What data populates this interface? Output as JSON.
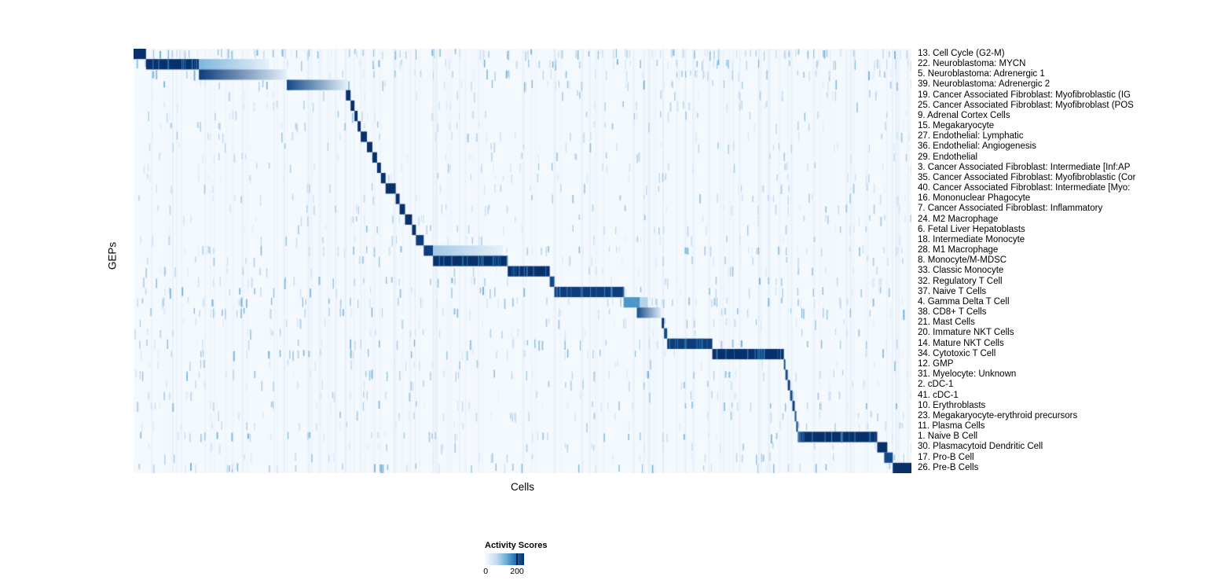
{
  "figure": {
    "x_axis_label": "Cells",
    "y_axis_label": "GEPs"
  },
  "legend": {
    "title": "Activity Scores",
    "min_label": "0",
    "max_label": "200"
  },
  "chart_data": {
    "type": "heatmap",
    "title": "",
    "xlabel": "Cells",
    "ylabel": "GEPs",
    "x_axis": "individual cells (columns, unlabeled, ordered by cluster)",
    "colorbar": {
      "title": "Activity Scores",
      "range": [
        0,
        200
      ]
    },
    "colormap": [
      "#f7fbff",
      "#c6dbef",
      "#6baed6",
      "#2171b5",
      "#08306b"
    ],
    "noise": {
      "seed": 42,
      "base_density": 0.03,
      "column_streaks": 120
    },
    "rows": [
      {
        "label": "13. Cell Cycle (G2-M)",
        "noise_boost": 4,
        "blocks": [
          {
            "start_frac": 0.0,
            "width_frac": 0.016,
            "intensity": 1.0
          }
        ]
      },
      {
        "label": "22. Neuroblastoma: MYCN",
        "noise_boost": 2,
        "blocks": [
          {
            "start_frac": 0.016,
            "width_frac": 0.068,
            "intensity": 1.0
          },
          {
            "start_frac": 0.084,
            "width_frac": 0.09,
            "intensity": 0.45,
            "fade": true
          }
        ]
      },
      {
        "label": "5. Neuroblastoma: Adrenergic 1",
        "noise_boost": 2,
        "blocks": [
          {
            "start_frac": 0.084,
            "width_frac": 0.113,
            "intensity": 0.95,
            "fade": true
          }
        ]
      },
      {
        "label": "39. Neuroblastoma: Adrenergic 2",
        "noise_boost": 1.5,
        "blocks": [
          {
            "start_frac": 0.197,
            "width_frac": 0.078,
            "intensity": 0.9,
            "fade": true
          }
        ]
      },
      {
        "label": "19. Cancer Associated Fibroblast: Myofibroblastic (IG",
        "blocks": [
          {
            "start_frac": 0.273,
            "width_frac": 0.006,
            "intensity": 1.0
          }
        ]
      },
      {
        "label": "25. Cancer Associated Fibroblast: Myofibroblast (POS",
        "blocks": [
          {
            "start_frac": 0.279,
            "width_frac": 0.005,
            "intensity": 1.0
          }
        ]
      },
      {
        "label": "9. Adrenal Cortex Cells",
        "blocks": [
          {
            "start_frac": 0.284,
            "width_frac": 0.004,
            "intensity": 1.0
          }
        ]
      },
      {
        "label": "15. Megakaryocyte",
        "blocks": [
          {
            "start_frac": 0.288,
            "width_frac": 0.004,
            "intensity": 1.0
          }
        ]
      },
      {
        "label": "27. Endothelial: Lymphatic",
        "blocks": [
          {
            "start_frac": 0.292,
            "width_frac": 0.008,
            "intensity": 1.0
          }
        ]
      },
      {
        "label": "36. Endothelial: Angiogenesis",
        "blocks": [
          {
            "start_frac": 0.3,
            "width_frac": 0.007,
            "intensity": 1.0
          }
        ]
      },
      {
        "label": "29. Endothelial",
        "blocks": [
          {
            "start_frac": 0.307,
            "width_frac": 0.006,
            "intensity": 1.0
          }
        ]
      },
      {
        "label": "3. Cancer Associated Fibroblast: Intermediate [Inf:AP",
        "blocks": [
          {
            "start_frac": 0.313,
            "width_frac": 0.005,
            "intensity": 1.0
          }
        ]
      },
      {
        "label": "35. Cancer Associated Fibroblast: Myofibroblastic (Cor",
        "blocks": [
          {
            "start_frac": 0.318,
            "width_frac": 0.006,
            "intensity": 1.0
          }
        ]
      },
      {
        "label": "40. Cancer Associated Fibroblast: Intermediate [Myo:",
        "blocks": [
          {
            "start_frac": 0.324,
            "width_frac": 0.013,
            "intensity": 1.0
          }
        ]
      },
      {
        "label": "16. Mononuclear Phagocyte",
        "blocks": [
          {
            "start_frac": 0.337,
            "width_frac": 0.005,
            "intensity": 1.0
          }
        ]
      },
      {
        "label": "7. Cancer Associated Fibroblast: Inflammatory",
        "blocks": [
          {
            "start_frac": 0.342,
            "width_frac": 0.007,
            "intensity": 1.0
          }
        ]
      },
      {
        "label": "24. M2 Macrophage",
        "blocks": [
          {
            "start_frac": 0.349,
            "width_frac": 0.009,
            "intensity": 1.0
          }
        ]
      },
      {
        "label": "6. Fetal Liver Hepatoblasts",
        "blocks": [
          {
            "start_frac": 0.358,
            "width_frac": 0.005,
            "intensity": 1.0
          }
        ]
      },
      {
        "label": "18. Intermediate Monocyte",
        "blocks": [
          {
            "start_frac": 0.363,
            "width_frac": 0.01,
            "intensity": 0.95
          }
        ]
      },
      {
        "label": "28. M1 Macrophage",
        "noise_boost": 2,
        "blocks": [
          {
            "start_frac": 0.373,
            "width_frac": 0.012,
            "intensity": 0.95
          },
          {
            "start_frac": 0.385,
            "width_frac": 0.09,
            "intensity": 0.35,
            "fade": true
          }
        ]
      },
      {
        "label": "8. Monocyte/M-MDSC",
        "blocks": [
          {
            "start_frac": 0.385,
            "width_frac": 0.096,
            "intensity": 1.0
          }
        ]
      },
      {
        "label": "33. Classic Monocyte",
        "blocks": [
          {
            "start_frac": 0.481,
            "width_frac": 0.054,
            "intensity": 1.0
          }
        ]
      },
      {
        "label": "32. Regulatory T Cell",
        "noise_boost": 1.5,
        "blocks": [
          {
            "start_frac": 0.535,
            "width_frac": 0.006,
            "intensity": 0.9
          }
        ]
      },
      {
        "label": "37. Naive T Cells",
        "noise_boost": 1.5,
        "blocks": [
          {
            "start_frac": 0.541,
            "width_frac": 0.089,
            "intensity": 0.95
          }
        ]
      },
      {
        "label": "4. Gamma Delta T Cell",
        "noise_boost": 2,
        "blocks": [
          {
            "start_frac": 0.63,
            "width_frac": 0.021,
            "intensity": 0.6
          },
          {
            "start_frac": 0.651,
            "width_frac": 0.01,
            "intensity": 0.3
          }
        ]
      },
      {
        "label": "38. CD8+ T Cells",
        "noise_boost": 1.5,
        "blocks": [
          {
            "start_frac": 0.647,
            "width_frac": 0.032,
            "intensity": 0.9,
            "fade": true
          }
        ]
      },
      {
        "label": "21. Mast Cells",
        "blocks": [
          {
            "start_frac": 0.679,
            "width_frac": 0.003,
            "intensity": 1.0
          }
        ]
      },
      {
        "label": "20. Immature NKT Cells",
        "blocks": [
          {
            "start_frac": 0.682,
            "width_frac": 0.004,
            "intensity": 0.9
          }
        ]
      },
      {
        "label": "14. Mature NKT Cells",
        "noise_boost": 1.5,
        "blocks": [
          {
            "start_frac": 0.686,
            "width_frac": 0.058,
            "intensity": 0.95
          }
        ]
      },
      {
        "label": "34. Cytotoxic T Cell",
        "noise_boost": 1.5,
        "blocks": [
          {
            "start_frac": 0.744,
            "width_frac": 0.092,
            "intensity": 1.0
          }
        ]
      },
      {
        "label": "12. GMP",
        "blocks": [
          {
            "start_frac": 0.836,
            "width_frac": 0.002,
            "intensity": 0.9
          }
        ]
      },
      {
        "label": "31. Myelocyte: Unknown",
        "noise_boost": 1.5,
        "blocks": [
          {
            "start_frac": 0.838,
            "width_frac": 0.003,
            "intensity": 0.9
          }
        ]
      },
      {
        "label": "2. cDC-1",
        "blocks": [
          {
            "start_frac": 0.841,
            "width_frac": 0.003,
            "intensity": 0.95
          }
        ]
      },
      {
        "label": "41. cDC-1",
        "blocks": [
          {
            "start_frac": 0.844,
            "width_frac": 0.003,
            "intensity": 0.9
          }
        ]
      },
      {
        "label": "10. Erythroblasts",
        "noise_boost": 1.5,
        "blocks": [
          {
            "start_frac": 0.847,
            "width_frac": 0.003,
            "intensity": 0.95
          }
        ]
      },
      {
        "label": "23. Megakaryocyte-erythroid precursors",
        "blocks": [
          {
            "start_frac": 0.85,
            "width_frac": 0.002,
            "intensity": 0.9
          }
        ]
      },
      {
        "label": "11. Plasma Cells",
        "blocks": [
          {
            "start_frac": 0.852,
            "width_frac": 0.002,
            "intensity": 0.95
          }
        ]
      },
      {
        "label": "1. Naive B Cell",
        "noise_boost": 1.5,
        "blocks": [
          {
            "start_frac": 0.854,
            "width_frac": 0.102,
            "intensity": 1.0
          }
        ]
      },
      {
        "label": "30. Plasmacytoid Dendritic Cell",
        "blocks": [
          {
            "start_frac": 0.956,
            "width_frac": 0.013,
            "intensity": 1.0
          }
        ]
      },
      {
        "label": "17. Pro-B Cell",
        "blocks": [
          {
            "start_frac": 0.965,
            "width_frac": 0.011,
            "intensity": 0.9
          }
        ]
      },
      {
        "label": "26. Pre-B Cells",
        "noise_boost": 1.5,
        "blocks": [
          {
            "start_frac": 0.976,
            "width_frac": 0.024,
            "intensity": 1.0
          }
        ]
      }
    ]
  }
}
